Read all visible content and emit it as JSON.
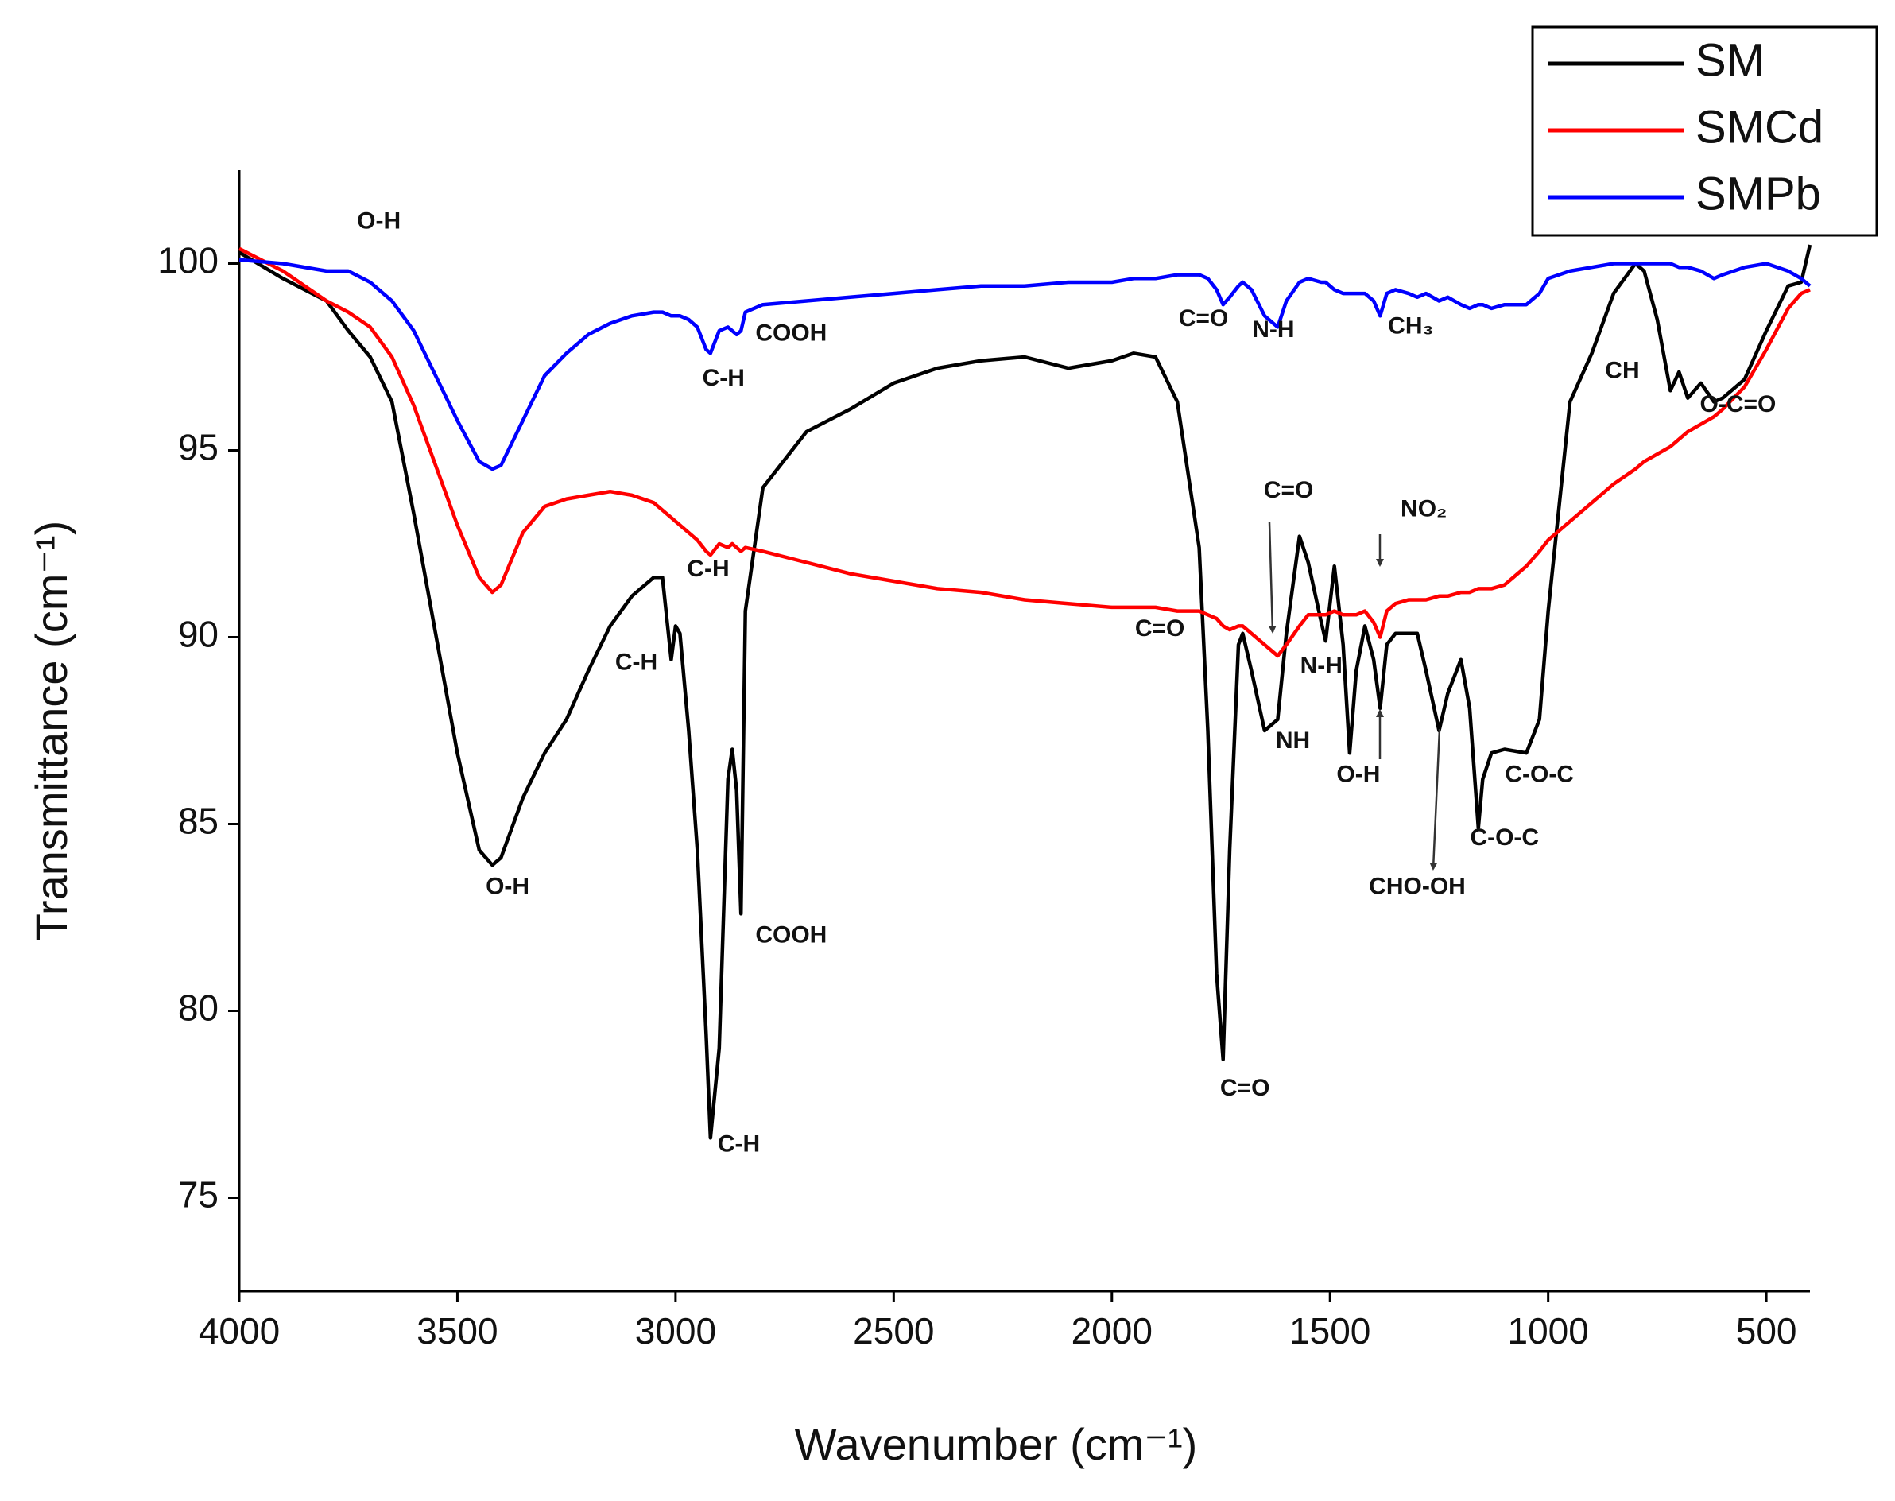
{
  "chart_data": {
    "type": "line",
    "xlabel": "Wavenumber  (cm⁻¹)",
    "ylabel": "Transmittance  (cm⁻¹)",
    "xlim": [
      4000,
      400
    ],
    "ylim": [
      72.5,
      102.5
    ],
    "xticks": [
      4000,
      3500,
      3000,
      2500,
      2000,
      1500,
      1000,
      500
    ],
    "yticks": [
      75,
      80,
      85,
      90,
      95,
      100
    ],
    "legend": "upper right",
    "x": [
      4000,
      3900,
      3800,
      3750,
      3700,
      3650,
      3600,
      3550,
      3500,
      3450,
      3420,
      3400,
      3350,
      3300,
      3250,
      3200,
      3150,
      3100,
      3050,
      3030,
      3010,
      3000,
      2990,
      2970,
      2950,
      2930,
      2920,
      2900,
      2880,
      2870,
      2860,
      2850,
      2840,
      2800,
      2700,
      2600,
      2500,
      2400,
      2300,
      2200,
      2100,
      2000,
      1950,
      1900,
      1850,
      1800,
      1780,
      1760,
      1745,
      1730,
      1710,
      1700,
      1680,
      1650,
      1620,
      1600,
      1570,
      1550,
      1520,
      1510,
      1490,
      1470,
      1455,
      1440,
      1420,
      1400,
      1385,
      1370,
      1350,
      1320,
      1300,
      1280,
      1250,
      1230,
      1200,
      1180,
      1160,
      1150,
      1130,
      1100,
      1050,
      1020,
      1000,
      950,
      900,
      850,
      800,
      780,
      750,
      720,
      700,
      680,
      650,
      620,
      600,
      550,
      500,
      450,
      420,
      400
    ],
    "series": [
      {
        "name": "SM",
        "color": "#000000",
        "values": [
          100.3,
          99.6,
          99.0,
          98.2,
          97.5,
          96.3,
          93.3,
          90.1,
          86.9,
          84.3,
          83.9,
          84.1,
          85.7,
          86.9,
          87.8,
          89.1,
          90.3,
          91.1,
          91.6,
          91.6,
          89.4,
          90.3,
          90.1,
          87.5,
          84.3,
          79.4,
          76.6,
          79.0,
          86.2,
          87.0,
          85.9,
          82.6,
          90.7,
          94.0,
          95.5,
          96.1,
          96.8,
          97.2,
          97.4,
          97.5,
          97.2,
          97.4,
          97.6,
          97.5,
          96.3,
          92.4,
          87.5,
          81.0,
          78.7,
          84.3,
          89.8,
          90.1,
          89.1,
          87.5,
          87.8,
          90.1,
          92.7,
          92.0,
          90.4,
          89.9,
          91.9,
          89.8,
          86.9,
          89.1,
          90.3,
          89.4,
          88.1,
          89.8,
          90.1,
          90.1,
          90.1,
          89.1,
          87.5,
          88.5,
          89.4,
          88.1,
          84.9,
          86.2,
          86.9,
          87.0,
          86.9,
          87.8,
          90.7,
          96.3,
          97.6,
          99.2,
          100.0,
          99.8,
          98.5,
          96.6,
          97.1,
          96.4,
          96.8,
          96.3,
          96.4,
          96.9,
          98.2,
          99.4,
          99.5,
          100.5
        ]
      },
      {
        "name": "SMCd",
        "color": "#ff0000",
        "values": [
          100.4,
          99.8,
          99.0,
          98.7,
          98.3,
          97.5,
          96.2,
          94.6,
          93.0,
          91.6,
          91.2,
          91.4,
          92.8,
          93.5,
          93.7,
          93.8,
          93.9,
          93.8,
          93.6,
          93.4,
          93.2,
          93.1,
          93.0,
          92.8,
          92.6,
          92.3,
          92.2,
          92.5,
          92.4,
          92.5,
          92.4,
          92.3,
          92.4,
          92.3,
          92.0,
          91.7,
          91.5,
          91.3,
          91.2,
          91.0,
          90.9,
          90.8,
          90.8,
          90.8,
          90.7,
          90.7,
          90.6,
          90.5,
          90.3,
          90.2,
          90.3,
          90.3,
          90.1,
          89.8,
          89.5,
          89.8,
          90.3,
          90.6,
          90.6,
          90.6,
          90.7,
          90.6,
          90.6,
          90.6,
          90.7,
          90.4,
          90.0,
          90.7,
          90.9,
          91.0,
          91.0,
          91.0,
          91.1,
          91.1,
          91.2,
          91.2,
          91.3,
          91.3,
          91.3,
          91.4,
          91.9,
          92.3,
          92.6,
          93.1,
          93.6,
          94.1,
          94.5,
          94.7,
          94.9,
          95.1,
          95.3,
          95.5,
          95.7,
          95.9,
          96.1,
          96.7,
          97.7,
          98.8,
          99.2,
          99.3
        ]
      },
      {
        "name": "SMPb",
        "color": "#0000ff",
        "values": [
          100.1,
          100.0,
          99.8,
          99.8,
          99.5,
          99.0,
          98.2,
          97.0,
          95.8,
          94.7,
          94.5,
          94.6,
          95.8,
          97.0,
          97.6,
          98.1,
          98.4,
          98.6,
          98.7,
          98.7,
          98.6,
          98.6,
          98.6,
          98.5,
          98.3,
          97.7,
          97.6,
          98.2,
          98.3,
          98.2,
          98.1,
          98.2,
          98.7,
          98.9,
          99.0,
          99.1,
          99.2,
          99.3,
          99.4,
          99.4,
          99.5,
          99.5,
          99.6,
          99.6,
          99.7,
          99.7,
          99.6,
          99.3,
          98.9,
          99.1,
          99.4,
          99.5,
          99.3,
          98.6,
          98.3,
          99.0,
          99.5,
          99.6,
          99.5,
          99.5,
          99.3,
          99.2,
          99.2,
          99.2,
          99.2,
          99.0,
          98.6,
          99.2,
          99.3,
          99.2,
          99.1,
          99.2,
          99.0,
          99.1,
          98.9,
          98.8,
          98.9,
          98.9,
          98.8,
          98.9,
          98.9,
          99.2,
          99.6,
          99.8,
          99.9,
          100.0,
          100.0,
          100.0,
          100.0,
          100.0,
          99.9,
          99.9,
          99.8,
          99.6,
          99.7,
          99.9,
          100.0,
          99.8,
          99.6,
          99.4
        ]
      }
    ],
    "annotations": [
      {
        "text": "O-H",
        "x": 3680,
        "y": 101.1
      },
      {
        "text": "C-H",
        "x": 2890,
        "y": 96.9
      },
      {
        "text": "COOH",
        "x": 2735,
        "y": 98.1
      },
      {
        "text": "C=O",
        "x": 1790,
        "y": 98.5
      },
      {
        "text": "N-H",
        "x": 1630,
        "y": 98.2
      },
      {
        "text": "CH₃",
        "x": 1315,
        "y": 98.3
      },
      {
        "text": "CH",
        "x": 830,
        "y": 97.1
      },
      {
        "text": "O-C=O",
        "x": 565,
        "y": 96.2
      },
      {
        "text": "C=O",
        "x": 1595,
        "y": 93.9
      },
      {
        "text": "NO₂",
        "x": 1285,
        "y": 93.4
      },
      {
        "text": "C-H",
        "x": 2925,
        "y": 91.8
      },
      {
        "text": "C=O",
        "x": 1890,
        "y": 90.2
      },
      {
        "text": "C-H",
        "x": 3090,
        "y": 89.3
      },
      {
        "text": "N-H",
        "x": 1520,
        "y": 89.2
      },
      {
        "text": "NH",
        "x": 1585,
        "y": 87.2
      },
      {
        "text": "O-H",
        "x": 1435,
        "y": 86.3
      },
      {
        "text": "C-O-C",
        "x": 1020,
        "y": 86.3
      },
      {
        "text": "C-O-C",
        "x": 1100,
        "y": 84.6
      },
      {
        "text": "O-H",
        "x": 3385,
        "y": 83.3
      },
      {
        "text": "COOH",
        "x": 2735,
        "y": 82.0
      },
      {
        "text": "CHO-OH",
        "x": 1300,
        "y": 83.3
      },
      {
        "text": "C=O",
        "x": 1695,
        "y": 77.9
      },
      {
        "text": "C-H",
        "x": 2855,
        "y": 76.4
      }
    ]
  }
}
